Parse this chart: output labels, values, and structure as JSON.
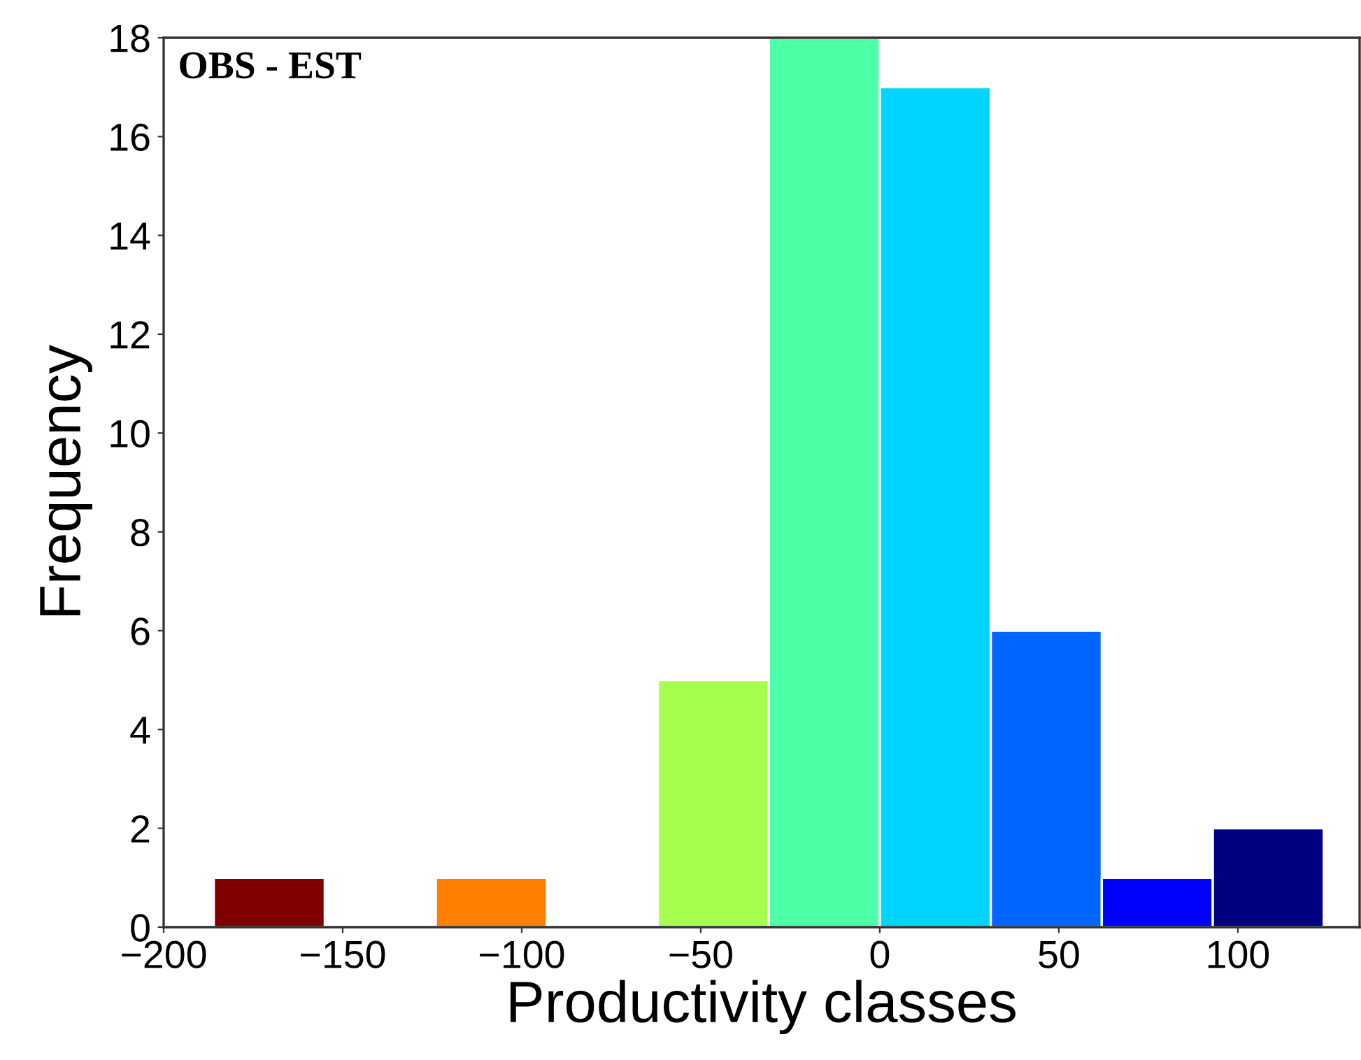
{
  "chart_data": {
    "type": "histogram",
    "xlabel": "Productivity classes",
    "ylabel": "Frequency",
    "annotations": [
      "OBS - EST"
    ],
    "bins": [
      -186,
      -155,
      -124,
      -93,
      -62,
      -31,
      0,
      31,
      62,
      93,
      124
    ],
    "values": [
      1,
      0,
      1,
      0,
      5,
      18,
      17,
      6,
      1,
      2
    ],
    "colors": [
      "#800000",
      null,
      "#ff8000",
      null,
      "#a6ff4d",
      "#4dffa6",
      "#00d5ff",
      "#0066ff",
      "#0000ff",
      "#000080"
    ],
    "xlim": [
      -200,
      134
    ],
    "xticks": [
      {
        "value": -200,
        "label": "−200"
      },
      {
        "value": -150,
        "label": "−150"
      },
      {
        "value": -100,
        "label": "−100"
      },
      {
        "value": -50,
        "label": "−50"
      },
      0,
      50,
      100
    ],
    "ylim": [
      0,
      18
    ],
    "yticks": [
      0,
      2,
      4,
      6,
      8,
      10,
      12,
      14,
      16,
      18
    ],
    "grid": false
  }
}
